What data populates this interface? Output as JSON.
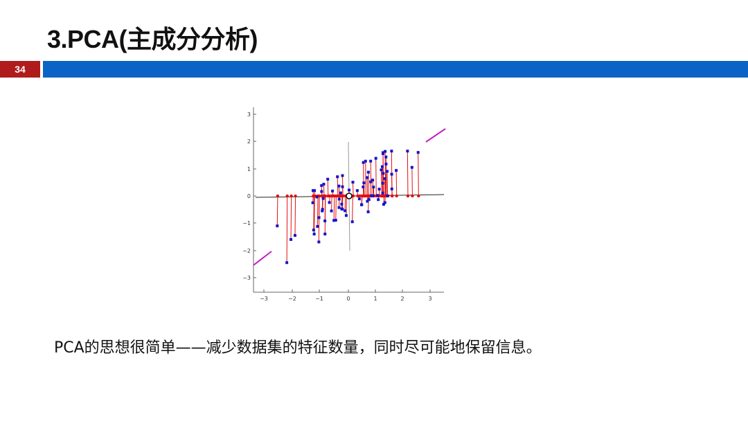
{
  "slide": {
    "title": "3.PCA(主成分分析)",
    "page_number": "34",
    "caption": "PCA的思想很简单——减少数据集的特征数量，同时尽可能地保留信息。",
    "colors": {
      "page_badge": "#b01c1c",
      "header_bar": "#0b63c5"
    }
  },
  "figure": {
    "x_ticks": [
      "−3",
      "−2",
      "−1",
      "0",
      "1",
      "2",
      "3"
    ],
    "y_ticks": [
      "3",
      "2",
      "1",
      "0",
      "−1",
      "−2",
      "−3"
    ],
    "colors": {
      "points": "#1515c8",
      "projections": "#e01010",
      "principal_axis": "#c020c0"
    }
  }
}
